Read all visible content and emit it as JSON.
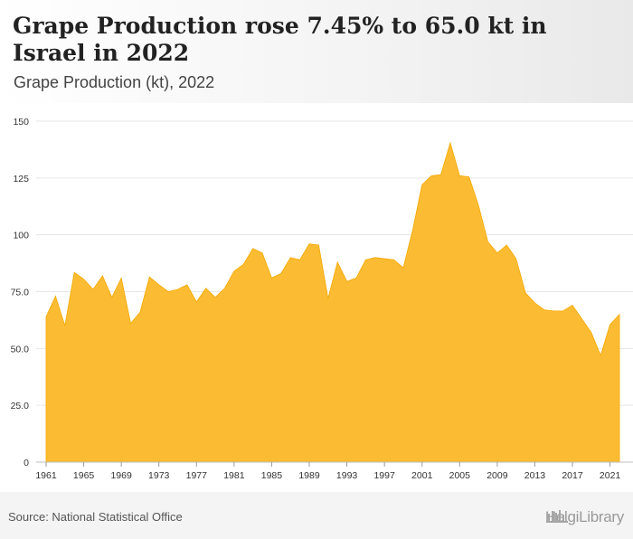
{
  "header": {
    "title": "Grape Production rose 7.45% to 65.0 kt in Israel in 2022",
    "subtitle": "Grape Production (kt), 2022"
  },
  "footer": {
    "source": "Source: National Statistical Office",
    "logo_text": "HelgiLibrary"
  },
  "colors": {
    "area_fill": "#fbbc33",
    "area_stroke": "#f5a800",
    "grid": "#e6e6e6"
  },
  "chart_data": {
    "type": "area",
    "title": "Grape Production (kt), 2022",
    "xlabel": "",
    "ylabel": "",
    "ylim": [
      0,
      150
    ],
    "yticks": [
      0,
      25.0,
      50.0,
      75.0,
      100,
      125,
      150
    ],
    "ytick_labels": [
      "0",
      "25.0",
      "50.0",
      "75.0",
      "100",
      "125",
      "150"
    ],
    "xticks": [
      1961,
      1965,
      1969,
      1973,
      1977,
      1981,
      1985,
      1989,
      1993,
      1997,
      2001,
      2005,
      2009,
      2013,
      2017,
      2021
    ],
    "xlim": [
      1961,
      2022
    ],
    "grid": true,
    "legend": "none",
    "x": [
      1961,
      1962,
      1963,
      1964,
      1965,
      1966,
      1967,
      1968,
      1969,
      1970,
      1971,
      1972,
      1973,
      1974,
      1975,
      1976,
      1977,
      1978,
      1979,
      1980,
      1981,
      1982,
      1983,
      1984,
      1985,
      1986,
      1987,
      1988,
      1989,
      1990,
      1991,
      1992,
      1993,
      1994,
      1995,
      1996,
      1997,
      1998,
      1999,
      2000,
      2001,
      2002,
      2003,
      2004,
      2005,
      2006,
      2007,
      2008,
      2009,
      2010,
      2011,
      2012,
      2013,
      2014,
      2015,
      2016,
      2017,
      2018,
      2019,
      2020,
      2021,
      2022
    ],
    "series": [
      {
        "values": [
          64,
          73,
          60,
          83.5,
          80.5,
          76,
          82,
          72.5,
          81,
          61,
          66,
          81.5,
          78,
          75,
          76,
          78,
          70.5,
          76.5,
          72.5,
          76.5,
          84,
          87,
          94,
          92,
          81,
          83,
          90,
          89,
          96,
          95.5,
          72,
          88,
          79.5,
          81,
          89,
          90,
          89.5,
          89,
          85.5,
          102,
          122,
          126,
          126.5,
          140.5,
          126,
          125.5,
          113,
          97,
          92,
          95.5,
          89.5,
          74.5,
          70,
          67,
          66.5,
          66.5,
          69,
          63,
          57,
          47,
          60.5,
          65
        ]
      }
    ]
  }
}
